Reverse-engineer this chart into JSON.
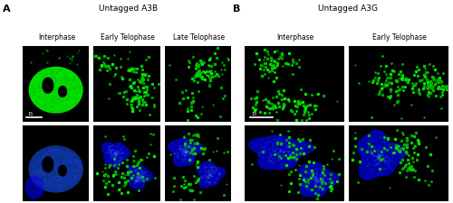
{
  "panel_A_title": "Untagged A3B",
  "panel_B_title": "Untagged A3G",
  "panel_A_label": "A",
  "panel_B_label": "B",
  "col_labels_A": [
    "Interphase",
    "Early Telophase",
    "Late Telophase"
  ],
  "col_labels_B": [
    "Interphase",
    "Early Telophase"
  ],
  "bg_color": "#ffffff",
  "cell_bg": "#000000",
  "label_fontsize": 5.5,
  "title_fontsize": 6.5,
  "panel_label_fontsize": 8,
  "scale_bar_text": "15"
}
